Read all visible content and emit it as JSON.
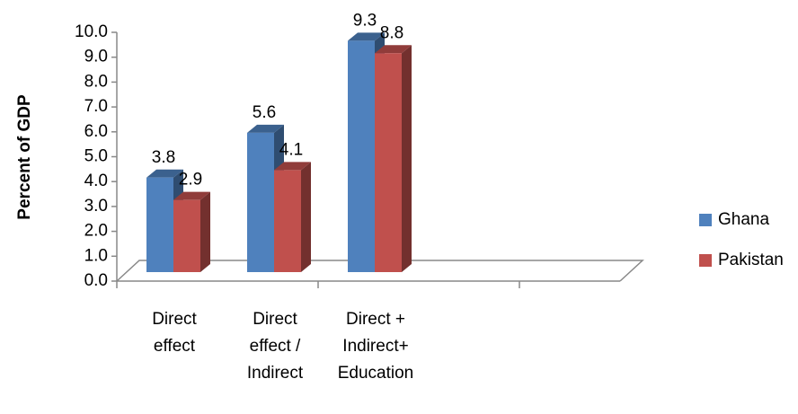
{
  "chart_data": {
    "type": "bar3d",
    "y_label": "Percent of GDP",
    "categories": [
      [
        "Direct",
        "effect"
      ],
      [
        "Direct",
        "effect /",
        "Indirect"
      ],
      [
        "Direct  +",
        "Indirect+",
        "Education"
      ],
      null,
      null
    ],
    "series": [
      {
        "name": "Ghana",
        "color": "#4f81bd",
        "values": [
          3.8,
          5.6,
          9.3,
          null,
          null
        ]
      },
      {
        "name": "Pakistan",
        "color": "#c0504d",
        "values": [
          2.9,
          4.1,
          8.8,
          null,
          null
        ]
      }
    ],
    "ylim": [
      0,
      10
    ],
    "yticks": [
      {
        "value": 0,
        "label": "0.0"
      },
      {
        "value": 1,
        "label": "1.0"
      },
      {
        "value": 2,
        "label": "2.0"
      },
      {
        "value": 3,
        "label": "3.0"
      },
      {
        "value": 4,
        "label": "4.0"
      },
      {
        "value": 5,
        "label": "5.0"
      },
      {
        "value": 6,
        "label": "6.0"
      },
      {
        "value": 7,
        "label": "7.0"
      },
      {
        "value": 8,
        "label": "8.0"
      },
      {
        "value": 9,
        "label": "9.0"
      },
      {
        "value": 10,
        "label": "10.0"
      }
    ],
    "legend": "right"
  }
}
